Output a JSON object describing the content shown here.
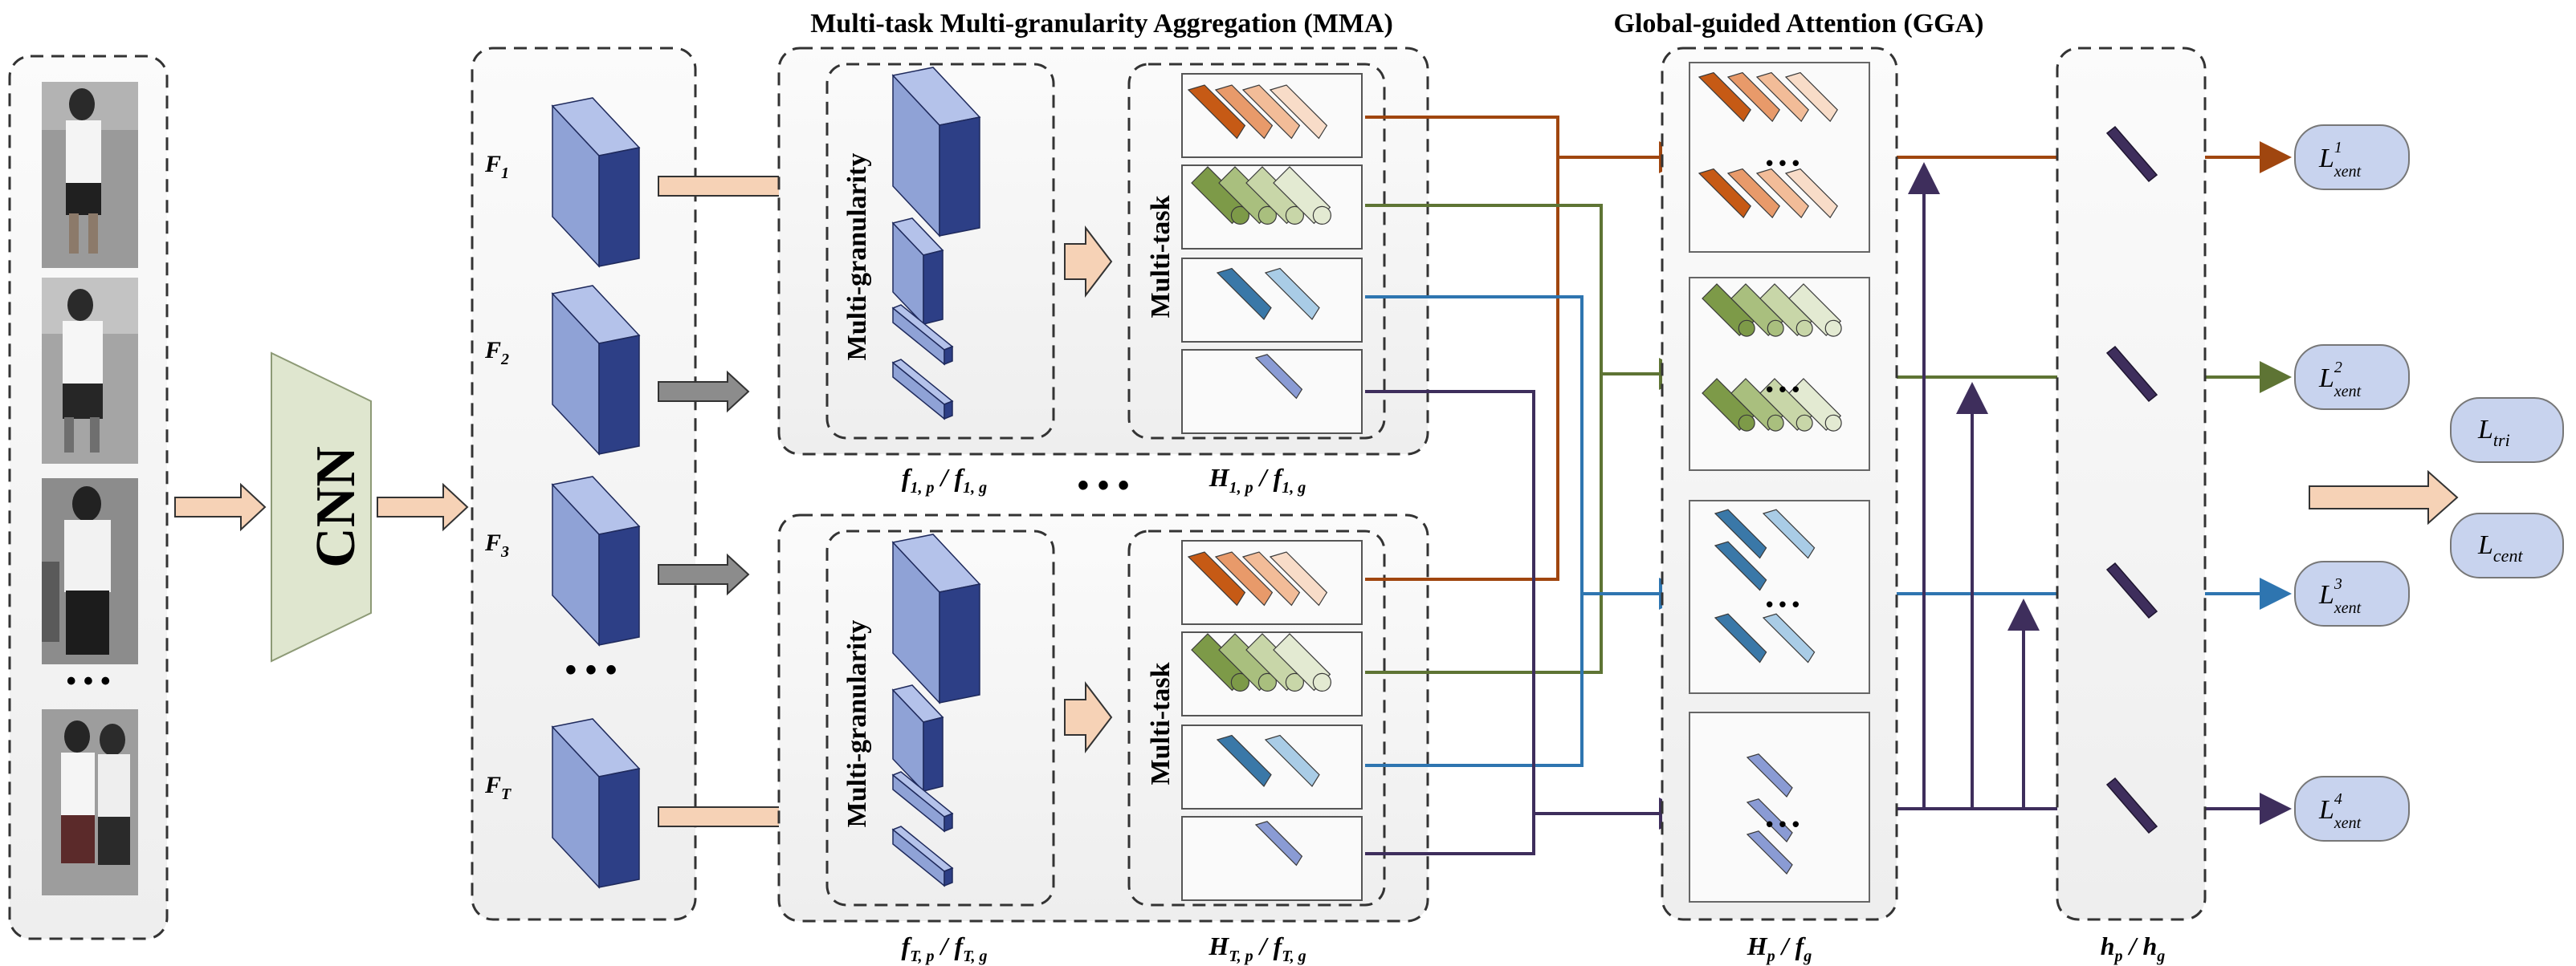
{
  "titles": {
    "mma": "Multi-task Multi-granularity Aggregation (MMA)",
    "gga": "Global-guided Attention (GGA)"
  },
  "backbone": "CNN",
  "features": {
    "f1": "F",
    "f1_sub": "1",
    "f2": "F",
    "f2_sub": "2",
    "f3": "F",
    "f3_sub": "3",
    "ft": "F",
    "ft_sub": "T"
  },
  "ellipsis": "• • •",
  "mma_blocks": {
    "multi_granularity": "Multi-granularity",
    "multi_task": "Multi-task",
    "top_left_caption": "f1, p / f1, g",
    "top_right_caption": "H1, p / f1, g",
    "bottom_left_caption": "fT, p / fT, g",
    "bottom_right_caption": "HT, p / fT, g"
  },
  "captions": {
    "t1": {
      "a": "f",
      "a_sub": "1, p",
      "sep": " / ",
      "b": "f",
      "b_sub": "1, g"
    },
    "t2": {
      "a": "H",
      "a_sub": "1, p",
      "sep": " / ",
      "b": "f",
      "b_sub": "1, g"
    },
    "b1": {
      "a": "f",
      "a_sub": "T, p",
      "sep": " / ",
      "b": "f",
      "b_sub": "T, g"
    },
    "b2": {
      "a": "H",
      "a_sub": "T, p",
      "sep": " / ",
      "b": "f",
      "b_sub": "T, g"
    },
    "g1": {
      "a": "H",
      "a_sub": "p",
      "sep": " / ",
      "b": "f",
      "b_sub": "g"
    },
    "g2": {
      "a": "h",
      "a_sub": "p",
      "sep": " / ",
      "b": "h",
      "b_sub": "g"
    }
  },
  "losses": [
    {
      "base": "L",
      "sup": "1",
      "sub": "xent"
    },
    {
      "base": "L",
      "sup": "2",
      "sub": "xent"
    },
    {
      "base": "L",
      "sup": "3",
      "sub": "xent"
    },
    {
      "base": "L",
      "sup": "4",
      "sub": "xent"
    }
  ],
  "final_losses": [
    {
      "base": "L",
      "sub": "tri"
    },
    {
      "base": "L",
      "sub": "cent"
    }
  ],
  "colors": {
    "orange": "#a0460f",
    "green": "#5e7434",
    "blue": "#2e75b0",
    "purple": "#3e2e5c",
    "cube_front": "#8fa2d6",
    "cube_side": "#2d3f86",
    "cube_top": "#b4c2ea",
    "arrow_peach": "#f6d2b6",
    "arrow_gray": "#8c8c8c",
    "trapezoid": "#dfe6cf",
    "loss_fill": "#c8d3ee"
  }
}
